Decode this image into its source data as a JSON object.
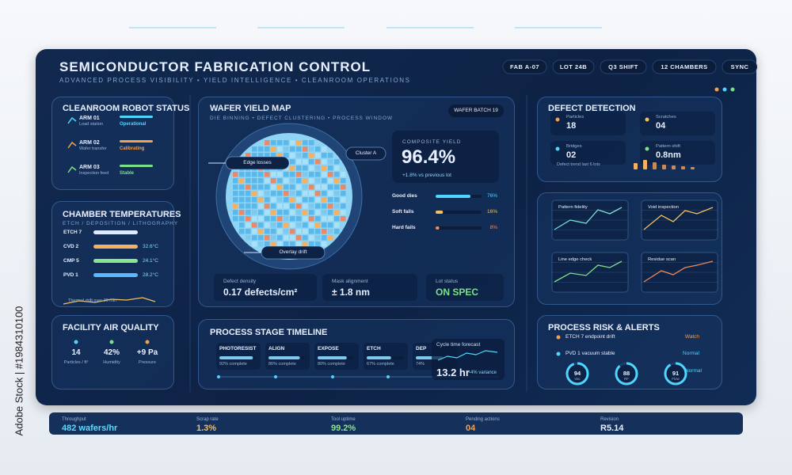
{
  "watermark": "Adobe Stock | #1984310100",
  "header": {
    "title": "SEMICONDUCTOR FABRICATION CONTROL",
    "subtitle": "ADVANCED PROCESS VISIBILITY • YIELD INTELLIGENCE • CLEANROOM OPERATIONS",
    "chips": [
      "FAB A-07",
      "LOT 24B",
      "Q3 SHIFT",
      "12 CHAMBERS",
      "SYNC"
    ]
  },
  "robot_status": {
    "title": "CLEANROOM ROBOT STATUS",
    "robots": [
      {
        "name": "ARM 01",
        "role": "Load station",
        "state": "Operational",
        "color": "#4fd6ff"
      },
      {
        "name": "ARM 02",
        "role": "Wafer transfer",
        "state": "Calibrating",
        "color": "#f5a04a"
      },
      {
        "name": "ARM 03",
        "role": "Inspection feed",
        "state": "Stable",
        "color": "#7be08a"
      }
    ]
  },
  "chamber_temperatures": {
    "title": "CHAMBER TEMPERATURES",
    "subtitle": "ETCH / DEPOSITION / LITHOGRAPHY",
    "rows": [
      {
        "name": "ETCH 7",
        "color": "#dfe9ff"
      },
      {
        "name": "CVD 2",
        "temp": "32.6°C",
        "color": "#f5b060"
      },
      {
        "name": "CMP 5",
        "temp": "24.1°C",
        "color": "#8be58f"
      },
      {
        "name": "PVD 1",
        "temp": "28.2°C",
        "color": "#5ab8ff"
      }
    ],
    "note": "Thermal drift over 30 min"
  },
  "air_quality": {
    "title": "FACILITY AIR QUALITY",
    "metrics": [
      {
        "value": "14",
        "label": "Particles / ft³",
        "color": "#4fd6ff"
      },
      {
        "value": "42%",
        "label": "Humidity",
        "color": "#7be08a"
      },
      {
        "value": "+9 Pa",
        "label": "Pressure",
        "color": "#f5a04a"
      }
    ]
  },
  "wafer_map": {
    "title": "WAFER YIELD MAP",
    "subtitle": "DIE BINNING • DEFECT CLUSTERING • PROCESS WINDOW",
    "batch": "WAFER BATCH 19",
    "callouts": [
      "Edge losses",
      "Cluster A",
      "Overlay drift"
    ],
    "composite": {
      "label": "COMPOSITE YIELD",
      "value": "96.4%",
      "delta": "+1.8% vs previous lot"
    },
    "bins": [
      {
        "name": "Good dies",
        "value": 76,
        "value_label": "76%",
        "color": "#4fd6ff"
      },
      {
        "name": "Soft fails",
        "value": 16,
        "value_label": "16%",
        "color": "#f5c060"
      },
      {
        "name": "Hard fails",
        "value": 8,
        "value_label": "8%",
        "color": "#f08a5a"
      }
    ],
    "stats": [
      {
        "label": "Defect density",
        "value": "0.17 defects/cm²"
      },
      {
        "label": "Mask alignment",
        "value": "± 1.8 nm"
      },
      {
        "label": "Lot status",
        "value": "ON SPEC"
      }
    ]
  },
  "timeline": {
    "title": "PROCESS STAGE TIMELINE",
    "stages": [
      {
        "name": "PHOTORESIST",
        "value": 92,
        "value_label": "92% complete"
      },
      {
        "name": "ALIGN",
        "value": 86,
        "value_label": "86% complete"
      },
      {
        "name": "EXPOSE",
        "value": 80,
        "value_label": "80% complete"
      },
      {
        "name": "ETCH",
        "value": 67,
        "value_label": "67% complete"
      },
      {
        "name": "DEP",
        "value": 74,
        "value_label": "74%"
      }
    ],
    "forecast": {
      "label": "Cycle time forecast",
      "value": "13.2 hr",
      "variance": "-4% variance"
    }
  },
  "defect_detection": {
    "title": "DEFECT DETECTION",
    "items": [
      {
        "label": "Particles",
        "value": "18",
        "color": "#f5a04a"
      },
      {
        "label": "Scratches",
        "value": "04",
        "color": "#f5c060"
      },
      {
        "label": "Bridges",
        "value": "02",
        "color": "#4fd6ff"
      },
      {
        "label": "Pattern shift",
        "value": "0.8nm",
        "color": "#7be08a"
      }
    ],
    "trend_label": "Defect trend last 6 lots"
  },
  "inspection_charts": [
    "Pattern fidelity",
    "Void inspection",
    "Line edge check",
    "Residue scan"
  ],
  "risk_alerts": {
    "title": "PROCESS RISK & ALERTS",
    "alerts": [
      {
        "text": "ETCH 7 endpoint drift",
        "status": "Watch",
        "color": "#f5a04a"
      },
      {
        "text": "PVD 1 vacuum stable",
        "status": "Normal",
        "color": "#4fd6ff"
      }
    ],
    "gauges": [
      {
        "value": 94,
        "label": "Vac"
      },
      {
        "value": 88,
        "label": "RF"
      },
      {
        "value": 91,
        "label": "Flow"
      }
    ],
    "gauge_status": "Normal"
  },
  "footer": [
    {
      "label": "Throughput",
      "value": "482 wafers/hr",
      "color": "#5fd8ff"
    },
    {
      "label": "Scrap rate",
      "value": "1.3%",
      "color": "#f5c060"
    },
    {
      "label": "Tool uptime",
      "value": "99.2%",
      "color": "#8be58f"
    },
    {
      "label": "Pending actions",
      "value": "04",
      "color": "#f5a04a"
    },
    {
      "label": "Revision",
      "value": "R5.14",
      "color": "#e8f0ff"
    }
  ]
}
